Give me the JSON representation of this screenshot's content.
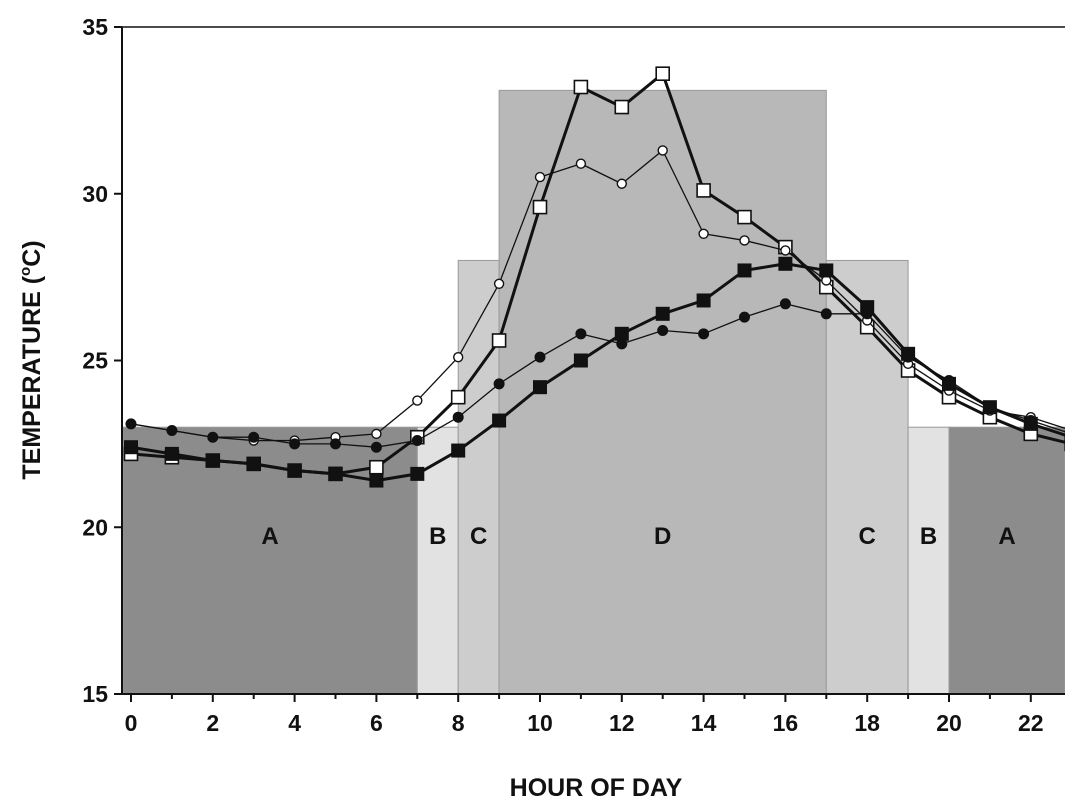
{
  "chart_data": {
    "type": "line",
    "xlabel": "HOUR OF DAY",
    "ylabel": "TEMPERATURE (",
    "ylabel_unit_sup": "o",
    "ylabel_unit": "C)",
    "xlim": [
      -0.2,
      23.3
    ],
    "ylim": [
      15,
      35
    ],
    "x_ticks": [
      0,
      2,
      4,
      6,
      8,
      10,
      12,
      14,
      16,
      18,
      20,
      22
    ],
    "y_ticks": [
      15,
      20,
      25,
      30,
      35
    ],
    "x_tick_labels": [
      "0",
      "2",
      "4",
      "6",
      "8",
      "10",
      "12",
      "14",
      "16",
      "18",
      "20",
      "22"
    ],
    "y_tick_labels": [
      "15",
      "20",
      "25",
      "30",
      "35"
    ],
    "background_zones": [
      {
        "label": "A",
        "x_start": -0.2,
        "x_end": 7,
        "y_top": 23.0,
        "color": "#8c8c8c"
      },
      {
        "label": "B",
        "x_start": 7,
        "x_end": 8,
        "y_top": 23.0,
        "color": "#e2e2e2"
      },
      {
        "label": "C",
        "x_start": 8,
        "x_end": 9,
        "y_top": 28.0,
        "color": "#cdcdcd"
      },
      {
        "label": "D",
        "x_start": 9,
        "x_end": 17,
        "y_top": 33.1,
        "color": "#b8b8b8"
      },
      {
        "label": "C",
        "x_start": 17,
        "x_end": 19,
        "y_top": 28.0,
        "color": "#cdcdcd"
      },
      {
        "label": "B",
        "x_start": 19,
        "x_end": 20,
        "y_top": 23.0,
        "color": "#e2e2e2"
      },
      {
        "label": "A",
        "x_start": 20,
        "x_end": 23.3,
        "y_top": 23.0,
        "color": "#8c8c8c"
      }
    ],
    "zone_label_y": 19.5,
    "x": [
      0,
      1,
      2,
      3,
      4,
      5,
      6,
      7,
      8,
      9,
      10,
      11,
      12,
      13,
      14,
      15,
      16,
      17,
      18,
      19,
      20,
      21,
      22,
      23
    ],
    "series": [
      {
        "marker": "open-square",
        "line_width": 3,
        "values": [
          22.2,
          22.1,
          22.0,
          21.9,
          21.7,
          21.6,
          21.8,
          22.7,
          23.9,
          25.6,
          29.6,
          33.2,
          32.6,
          33.6,
          30.1,
          29.3,
          28.4,
          27.2,
          26.0,
          24.7,
          23.9,
          23.3,
          22.8,
          22.5
        ]
      },
      {
        "marker": "open-circle",
        "line_width": 1.3,
        "values": [
          23.1,
          22.9,
          22.7,
          22.6,
          22.6,
          22.7,
          22.8,
          23.8,
          25.1,
          27.3,
          30.5,
          30.9,
          30.3,
          31.3,
          28.8,
          28.6,
          28.3,
          27.4,
          26.2,
          24.9,
          24.1,
          23.5,
          23.3,
          22.9
        ]
      },
      {
        "marker": "filled-square",
        "line_width": 3,
        "values": [
          22.4,
          22.2,
          22.0,
          21.9,
          21.7,
          21.6,
          21.4,
          21.6,
          22.3,
          23.2,
          24.2,
          25.0,
          25.8,
          26.4,
          26.8,
          27.7,
          27.9,
          27.7,
          26.6,
          25.2,
          24.3,
          23.6,
          23.1,
          22.7
        ]
      },
      {
        "marker": "filled-circle",
        "line_width": 1.3,
        "values": [
          23.1,
          22.9,
          22.7,
          22.7,
          22.5,
          22.5,
          22.4,
          22.6,
          23.3,
          24.3,
          25.1,
          25.8,
          25.5,
          25.9,
          25.8,
          26.3,
          26.7,
          26.4,
          26.4,
          25.1,
          24.4,
          23.6,
          23.2,
          22.8
        ]
      }
    ]
  }
}
